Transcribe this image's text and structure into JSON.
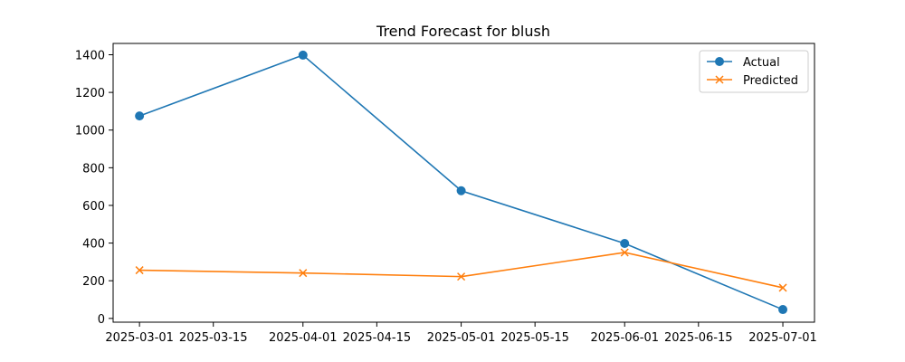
{
  "chart_data": {
    "type": "line",
    "title": "Trend Forecast for blush",
    "xlabel": "",
    "ylabel": "",
    "x": [
      "2025-03-01",
      "2025-04-01",
      "2025-05-01",
      "2025-06-01",
      "2025-07-01"
    ],
    "x_tick_labels": [
      "2025-03-01",
      "2025-03-15",
      "2025-04-01",
      "2025-04-15",
      "2025-05-01",
      "2025-05-15",
      "2025-06-01",
      "2025-06-15",
      "2025-07-01"
    ],
    "y_tick_labels": [
      "0",
      "200",
      "400",
      "600",
      "800",
      "1000",
      "1200",
      "1400"
    ],
    "ylim": [
      -20,
      1460
    ],
    "xlim": [
      "2025-02-24",
      "2025-07-07"
    ],
    "grid": false,
    "legend_position": "top-right",
    "series": [
      {
        "name": "Actual",
        "marker": "circle",
        "color": "#1f77b4",
        "values": [
          1075,
          1398,
          678,
          398,
          47
        ]
      },
      {
        "name": "Predicted",
        "marker": "x",
        "color": "#ff7f0e",
        "values": [
          256,
          241,
          222,
          350,
          163
        ]
      }
    ]
  }
}
